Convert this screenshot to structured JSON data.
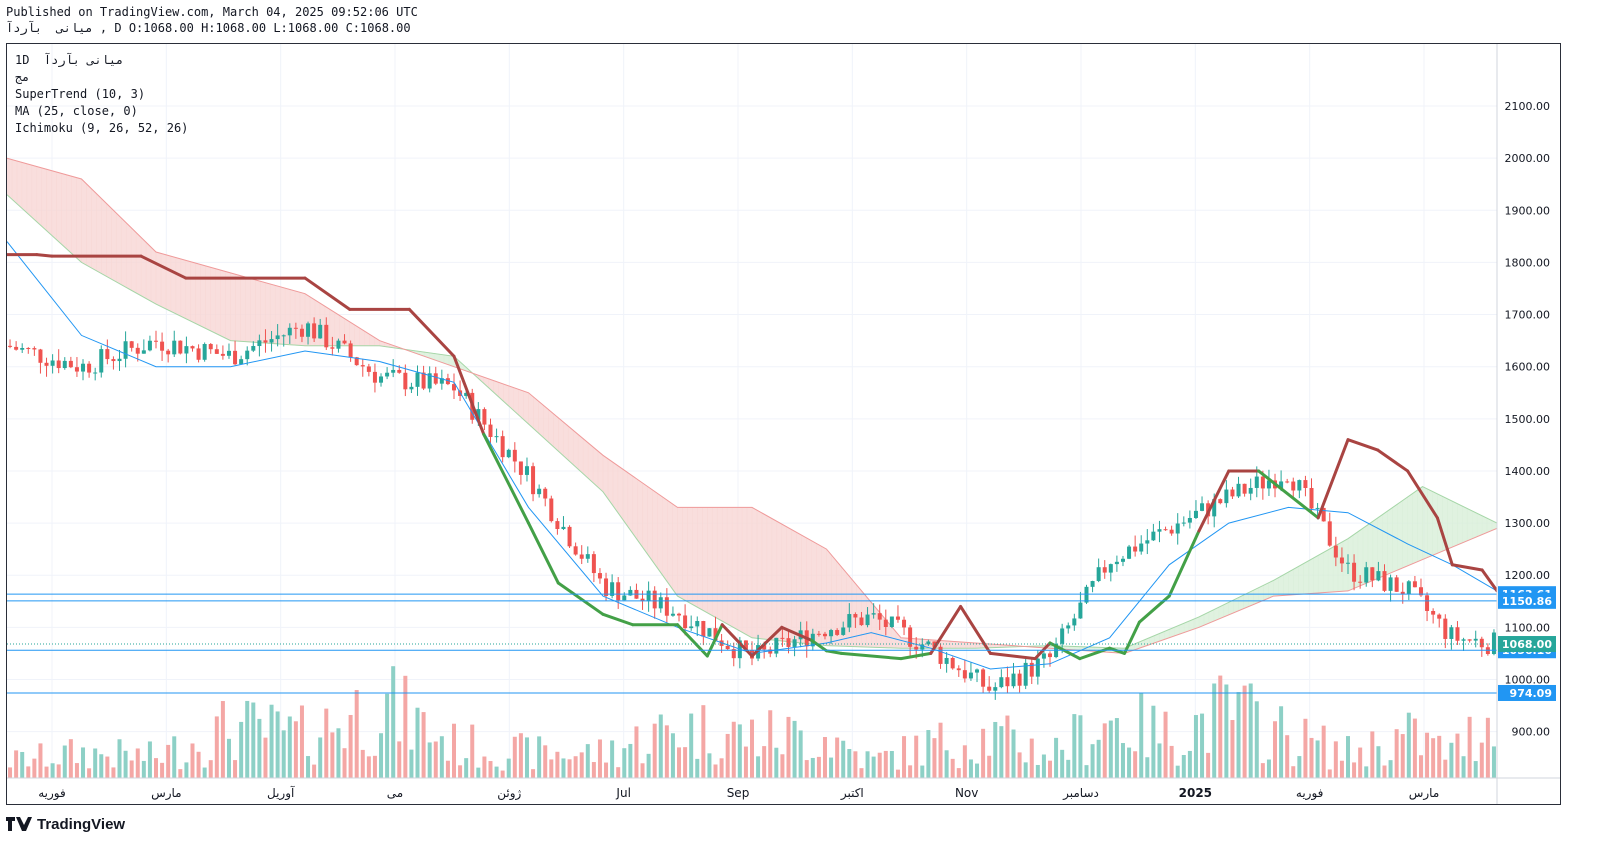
{
  "header": {
    "published": "Published on TradingView.com, March 04, 2025 09:52:06 UTC",
    "ohlc": "میانی  بآردآ , D O:1068.00 H:1068.00 L:1068.00 C:1068.00"
  },
  "legend": {
    "symbol_line": "1D  میانی بآردآ",
    "exchange": "مج",
    "indicators": [
      "SuperTrend (10, 3)",
      "MA (25, close, 0)",
      "Ichimoku (9, 26, 52, 26)"
    ]
  },
  "brand": {
    "name": "TradingView"
  },
  "chart_data": {
    "type": "candlestick",
    "title": "",
    "timeframe": "1D",
    "y_axis": {
      "ticks": [
        900,
        1000,
        1100,
        1200,
        1300,
        1400,
        1500,
        1600,
        1700,
        1800,
        1900,
        2000,
        2100
      ],
      "tick_labels": [
        "900.00",
        "1000.00",
        "1100.00",
        "1200.00",
        "1300.00",
        "1400.00",
        "1500.00",
        "1600.00",
        "1700.00",
        "1800.00",
        "1900.00",
        "2000.00",
        "2100.00"
      ],
      "ylim": [
        811,
        2219
      ]
    },
    "x_axis": {
      "labels": [
        "فوریه",
        "مارس",
        "آوریل",
        "می",
        "ژوئن",
        "Jul",
        "Sep",
        "اکتبر",
        "Nov",
        "دسامبر",
        "2025",
        "فوریه",
        "مارس"
      ]
    },
    "horizontal_levels": [
      {
        "value": 1163.61,
        "label": "1163.61",
        "color": "#2196f3"
      },
      {
        "value": 1150.86,
        "label": "1150.86",
        "color": "#2196f3"
      },
      {
        "value": 1056.1,
        "label": "1056.10",
        "color": "#2196f3"
      },
      {
        "value": 974.09,
        "label": "974.09",
        "color": "#2196f3"
      }
    ],
    "last_price": {
      "value": 1068.0,
      "label": "1068.00",
      "color": "#26a69a"
    },
    "colors": {
      "up": "#26a69a",
      "down": "#ef5350",
      "supertrend_up": "#43a047",
      "supertrend_down": "#a94442",
      "ma": "#2196f3",
      "cloud_bear": "#f8d7d5",
      "cloud_bull": "#d9efd9",
      "vol_up": "#8dd0c6",
      "vol_down": "#f4a7a5",
      "level_line": "#2196f3"
    },
    "series": [
      {
        "name": "SuperTrend (10, 3)",
        "type": "line",
        "x": [
          0,
          0.02,
          0.03,
          0.09,
          0.12,
          0.2,
          0.23,
          0.27,
          0.3,
          0.32,
          0.35,
          0.37,
          0.4,
          0.42,
          0.45,
          0.47,
          0.48,
          0.5,
          0.52,
          0.54,
          0.55,
          0.56,
          0.6,
          0.62,
          0.64,
          0.66,
          0.69,
          0.7,
          0.72,
          0.74,
          0.75,
          0.76,
          0.78,
          0.8,
          0.82,
          0.83,
          0.84,
          0.88,
          0.9,
          0.92,
          0.94,
          0.96,
          0.97,
          0.99,
          1
        ],
        "y": [
          1815,
          1815,
          1812,
          1812,
          1770,
          1770,
          1710,
          1710,
          1620,
          1470,
          1300,
          1185,
          1125,
          1105,
          1105,
          1045,
          1105,
          1045,
          1100,
          1075,
          1055,
          1050,
          1040,
          1050,
          1140,
          1050,
          1040,
          1070,
          1040,
          1060,
          1050,
          1110,
          1160,
          1285,
          1400,
          1400,
          1400,
          1310,
          1460,
          1440,
          1400,
          1310,
          1220,
          1210,
          1170
        ]
      },
      {
        "name": "MA (25, close, 0)",
        "type": "line",
        "x": [
          0,
          0.05,
          0.1,
          0.15,
          0.2,
          0.25,
          0.3,
          0.35,
          0.4,
          0.45,
          0.5,
          0.55,
          0.58,
          0.62,
          0.66,
          0.7,
          0.74,
          0.78,
          0.82,
          0.86,
          0.9,
          0.94,
          0.97,
          1
        ],
        "y": [
          1840,
          1660,
          1600,
          1600,
          1630,
          1610,
          1570,
          1330,
          1160,
          1100,
          1050,
          1070,
          1090,
          1060,
          1020,
          1030,
          1080,
          1220,
          1300,
          1330,
          1320,
          1260,
          1220,
          1170
        ]
      },
      {
        "name": "Ichimoku Senkou A",
        "type": "line",
        "x": [
          0,
          0.05,
          0.1,
          0.15,
          0.2,
          0.25,
          0.3,
          0.35,
          0.4,
          0.45,
          0.5,
          0.55,
          0.6,
          0.65,
          0.7,
          0.75,
          0.8,
          0.85,
          0.9,
          0.95,
          1
        ],
        "y": [
          1930,
          1800,
          1720,
          1650,
          1640,
          1640,
          1620,
          1490,
          1360,
          1160,
          1080,
          1065,
          1060,
          1060,
          1065,
          1060,
          1120,
          1190,
          1270,
          1370,
          1300
        ]
      },
      {
        "name": "Ichimoku Senkou B",
        "type": "line",
        "x": [
          0,
          0.05,
          0.1,
          0.15,
          0.2,
          0.25,
          0.3,
          0.35,
          0.4,
          0.45,
          0.5,
          0.55,
          0.6,
          0.65,
          0.7,
          0.75,
          0.8,
          0.85,
          0.9,
          0.95,
          1
        ],
        "y": [
          2000,
          1960,
          1820,
          1780,
          1740,
          1650,
          1600,
          1550,
          1430,
          1330,
          1330,
          1250,
          1080,
          1070,
          1060,
          1050,
          1100,
          1160,
          1170,
          1230,
          1290
        ]
      },
      {
        "name": "Price",
        "type": "candlestick",
        "x": [
          0,
          0.05,
          0.1,
          0.15,
          0.2,
          0.25,
          0.3,
          0.35,
          0.4,
          0.45,
          0.5,
          0.55,
          0.58,
          0.62,
          0.66,
          0.7,
          0.74,
          0.78,
          0.82,
          0.86,
          0.9,
          0.94,
          0.97,
          1
        ],
        "close": [
          1640,
          1600,
          1650,
          1620,
          1680,
          1580,
          1560,
          1390,
          1180,
          1130,
          1040,
          1100,
          1120,
          1060,
          980,
          1040,
          1230,
          1290,
          1350,
          1400,
          1210,
          1170,
          1080,
          1068
        ]
      },
      {
        "name": "Volume",
        "type": "bar",
        "x": [
          0,
          0.05,
          0.1,
          0.15,
          0.2,
          0.25,
          0.3,
          0.35,
          0.4,
          0.45,
          0.5,
          0.55,
          0.58,
          0.62,
          0.66,
          0.7,
          0.74,
          0.78,
          0.82,
          0.86,
          0.9,
          0.94,
          0.97,
          1
        ],
        "values": [
          0.2,
          0.3,
          0.25,
          0.6,
          0.5,
          0.9,
          0.4,
          0.3,
          0.3,
          0.6,
          0.5,
          0.5,
          0.2,
          0.4,
          0.5,
          0.3,
          0.7,
          0.5,
          0.8,
          0.5,
          0.3,
          0.5,
          0.3,
          0.8
        ]
      }
    ]
  }
}
